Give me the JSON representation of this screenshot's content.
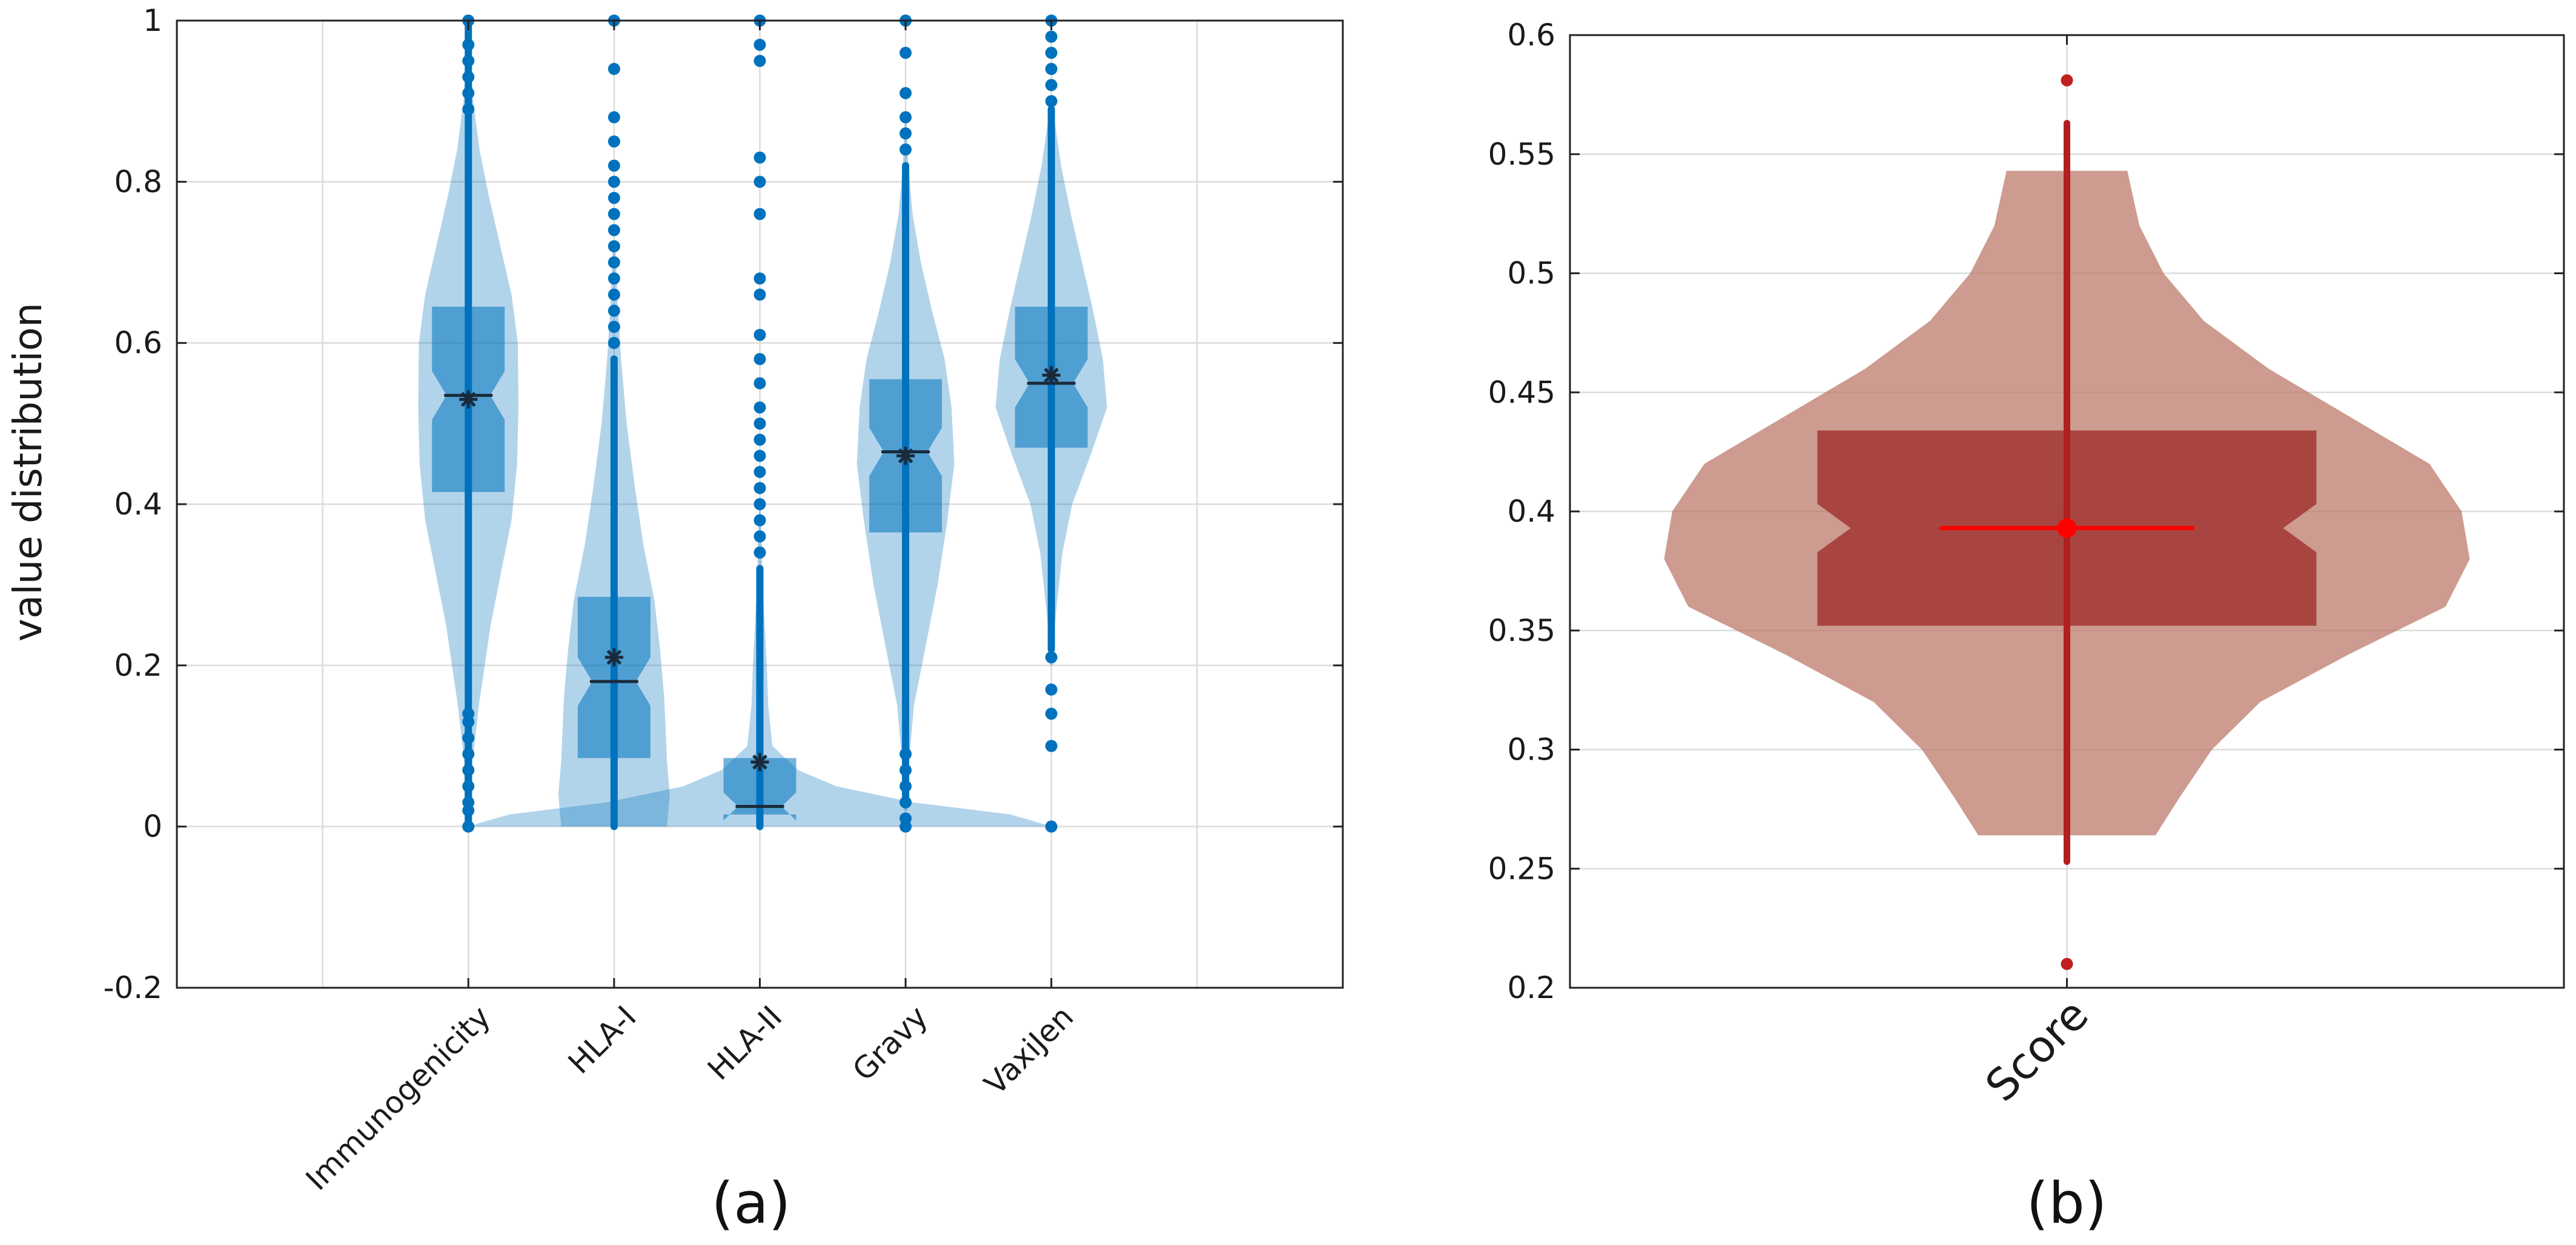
{
  "chart_data": [
    {
      "panel": "a",
      "panel_label": "(a)",
      "type": "violin",
      "ylabel": "value distribution",
      "ylim": [
        -0.2,
        1
      ],
      "yticks": [
        -0.2,
        0,
        0.2,
        0.4,
        0.6,
        0.8,
        1
      ],
      "ytick_labels": [
        "-0.2",
        "0",
        "0.2",
        "0.4",
        "0.6",
        "0.8",
        "1"
      ],
      "xlim": [
        -1,
        7
      ],
      "grid_x": [
        0,
        1,
        2,
        3,
        4,
        5,
        6
      ],
      "grid": true,
      "color": "#0072BD",
      "categories": [
        "Immunogenicity",
        "HLA-I",
        "HLA-II",
        "Gravy",
        "VaxiJen"
      ],
      "series": [
        {
          "name": "Immunogenicity",
          "position": 1,
          "q1": 0.415,
          "median": 0.535,
          "q3": 0.645,
          "mean": 0.53,
          "whisker_low": 0.0,
          "whisker_high": 1.0,
          "violin": [
            [
              0.0,
              0.05
            ],
            [
              0.08,
              0.06
            ],
            [
              0.15,
              0.15
            ],
            [
              0.25,
              0.32
            ],
            [
              0.32,
              0.48
            ],
            [
              0.38,
              0.62
            ],
            [
              0.45,
              0.7
            ],
            [
              0.52,
              0.72
            ],
            [
              0.6,
              0.71
            ],
            [
              0.66,
              0.62
            ],
            [
              0.72,
              0.46
            ],
            [
              0.78,
              0.3
            ],
            [
              0.84,
              0.16
            ],
            [
              0.9,
              0.07
            ],
            [
              0.96,
              0.02
            ]
          ],
          "outliers": [
            0.0,
            0.02,
            0.03,
            0.05,
            0.07,
            0.09,
            0.11,
            0.13,
            0.14,
            0.89,
            0.91,
            0.93,
            0.95,
            0.97,
            1.0
          ]
        },
        {
          "name": "HLA-I",
          "position": 2,
          "q1": 0.085,
          "median": 0.18,
          "q3": 0.285,
          "mean": 0.21,
          "whisker_low": 0.0,
          "whisker_high": 0.58,
          "violin": [
            [
              0.0,
              0.76
            ],
            [
              0.04,
              0.8
            ],
            [
              0.08,
              0.76
            ],
            [
              0.12,
              0.74
            ],
            [
              0.16,
              0.72
            ],
            [
              0.22,
              0.66
            ],
            [
              0.28,
              0.58
            ],
            [
              0.35,
              0.42
            ],
            [
              0.42,
              0.3
            ],
            [
              0.5,
              0.18
            ],
            [
              0.58,
              0.1
            ],
            [
              0.65,
              0.05
            ],
            [
              0.72,
              0.02
            ]
          ],
          "outliers": [
            0.6,
            0.62,
            0.64,
            0.66,
            0.68,
            0.7,
            0.72,
            0.74,
            0.76,
            0.78,
            0.8,
            0.82,
            0.85,
            0.88,
            0.94,
            1.0
          ]
        },
        {
          "name": "HLA-II",
          "position": 3,
          "q1": 0.015,
          "median": 0.025,
          "q3": 0.085,
          "mean": 0.08,
          "whisker_low": 0.0,
          "whisker_high": 0.32,
          "violin": [
            [
              0.0,
              4.2
            ],
            [
              0.015,
              3.6
            ],
            [
              0.03,
              2.2
            ],
            [
              0.05,
              1.1
            ],
            [
              0.07,
              0.55
            ],
            [
              0.1,
              0.18
            ],
            [
              0.15,
              0.12
            ],
            [
              0.2,
              0.1
            ],
            [
              0.25,
              0.07
            ],
            [
              0.3,
              0.04
            ],
            [
              0.35,
              0.03
            ],
            [
              0.4,
              0.01
            ]
          ],
          "outliers": [
            0.34,
            0.36,
            0.38,
            0.4,
            0.42,
            0.44,
            0.46,
            0.48,
            0.5,
            0.52,
            0.55,
            0.58,
            0.61,
            0.66,
            0.68,
            0.76,
            0.8,
            0.83,
            0.95,
            0.97,
            1.0
          ]
        },
        {
          "name": "Gravy",
          "position": 4,
          "q1": 0.365,
          "median": 0.465,
          "q3": 0.555,
          "mean": 0.46,
          "whisker_low": 0.03,
          "whisker_high": 0.82,
          "violin": [
            [
              0.02,
              0.02
            ],
            [
              0.08,
              0.05
            ],
            [
              0.15,
              0.12
            ],
            [
              0.22,
              0.28
            ],
            [
              0.3,
              0.46
            ],
            [
              0.38,
              0.6
            ],
            [
              0.45,
              0.7
            ],
            [
              0.52,
              0.66
            ],
            [
              0.58,
              0.56
            ],
            [
              0.64,
              0.38
            ],
            [
              0.7,
              0.22
            ],
            [
              0.76,
              0.1
            ],
            [
              0.82,
              0.04
            ],
            [
              0.88,
              0.01
            ]
          ],
          "outliers": [
            0.0,
            0.01,
            0.03,
            0.05,
            0.07,
            0.09,
            0.84,
            0.86,
            0.88,
            0.91,
            0.96,
            1.0
          ]
        },
        {
          "name": "VaxiJen",
          "position": 5,
          "q1": 0.47,
          "median": 0.55,
          "q3": 0.645,
          "mean": 0.56,
          "whisker_low": 0.22,
          "whisker_high": 0.89,
          "violin": [
            [
              0.2,
              0.02
            ],
            [
              0.26,
              0.06
            ],
            [
              0.34,
              0.16
            ],
            [
              0.4,
              0.3
            ],
            [
              0.46,
              0.56
            ],
            [
              0.52,
              0.8
            ],
            [
              0.58,
              0.74
            ],
            [
              0.64,
              0.6
            ],
            [
              0.7,
              0.44
            ],
            [
              0.76,
              0.28
            ],
            [
              0.82,
              0.14
            ],
            [
              0.88,
              0.04
            ],
            [
              0.9,
              0.01
            ]
          ],
          "outliers": [
            0.0,
            0.1,
            0.14,
            0.17,
            0.21,
            0.9,
            0.92,
            0.94,
            0.96,
            0.98,
            1.0
          ]
        }
      ]
    },
    {
      "panel": "b",
      "panel_label": "(b)",
      "type": "violin",
      "ylim": [
        0.2,
        0.6
      ],
      "yticks": [
        0.2,
        0.25,
        0.3,
        0.35,
        0.4,
        0.45,
        0.5,
        0.55,
        0.6
      ],
      "ytick_labels": [
        "0.2",
        "0.25",
        "0.3",
        "0.35",
        "0.4",
        "0.45",
        "0.5",
        "0.55",
        "0.6"
      ],
      "xlim": [
        0,
        2
      ],
      "grid_x": [
        1
      ],
      "grid": true,
      "violin_color": "#B8705F",
      "box_color": "#A0302C",
      "median_color": "#FF0000",
      "categories": [
        "Score"
      ],
      "series": [
        {
          "name": "Score",
          "position": 1,
          "q1": 0.352,
          "median": 0.393,
          "q3": 0.434,
          "mean": 0.393,
          "whisker_low": 0.253,
          "whisker_high": 0.563,
          "violin": [
            [
              0.264,
              0.22
            ],
            [
              0.28,
              0.28
            ],
            [
              0.3,
              0.36
            ],
            [
              0.32,
              0.48
            ],
            [
              0.34,
              0.7
            ],
            [
              0.36,
              0.94
            ],
            [
              0.38,
              1.0
            ],
            [
              0.4,
              0.98
            ],
            [
              0.42,
              0.9
            ],
            [
              0.44,
              0.7
            ],
            [
              0.46,
              0.5
            ],
            [
              0.48,
              0.34
            ],
            [
              0.5,
              0.24
            ],
            [
              0.52,
              0.18
            ],
            [
              0.543,
              0.15
            ]
          ],
          "outliers": [
            0.21,
            0.581
          ]
        }
      ]
    }
  ]
}
